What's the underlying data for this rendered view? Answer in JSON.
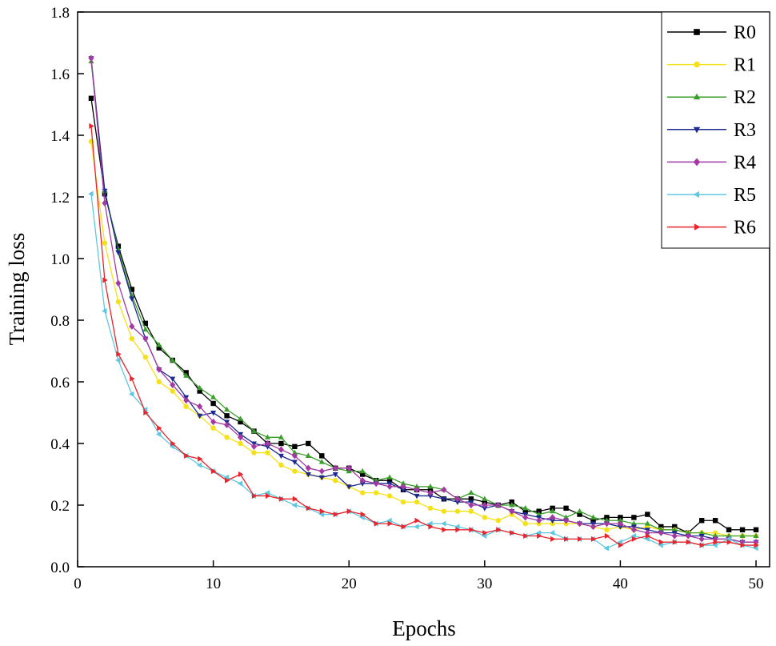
{
  "chart_data": {
    "type": "line",
    "title": "",
    "xlabel": "Epochs",
    "ylabel": "Training loss",
    "xlim": [
      0,
      51
    ],
    "ylim": [
      0.0,
      1.8
    ],
    "xticks": [
      0,
      10,
      20,
      30,
      40,
      50
    ],
    "xtick_labels": [
      "0",
      "10",
      "20",
      "30",
      "40",
      "50"
    ],
    "yticks": [
      0.0,
      0.2,
      0.4,
      0.6,
      0.8,
      1.0,
      1.2,
      1.4,
      1.6,
      1.8
    ],
    "ytick_labels": [
      "0.0",
      "0.2",
      "0.4",
      "0.6",
      "0.8",
      "1.0",
      "1.2",
      "1.4",
      "1.6",
      "1.8"
    ],
    "grid": false,
    "legend_position": "top-right",
    "x": [
      1,
      2,
      3,
      4,
      5,
      6,
      7,
      8,
      9,
      10,
      11,
      12,
      13,
      14,
      15,
      16,
      17,
      18,
      19,
      20,
      21,
      22,
      23,
      24,
      25,
      26,
      27,
      28,
      29,
      30,
      31,
      32,
      33,
      34,
      35,
      36,
      37,
      38,
      39,
      40,
      41,
      42,
      43,
      44,
      45,
      46,
      47,
      48,
      49,
      50
    ],
    "series": [
      {
        "name": "R0",
        "color": "#000000",
        "marker": "square",
        "values": [
          1.52,
          1.21,
          1.04,
          0.9,
          0.79,
          0.71,
          0.67,
          0.63,
          0.57,
          0.53,
          0.49,
          0.47,
          0.44,
          0.4,
          0.4,
          0.39,
          0.4,
          0.36,
          0.32,
          0.32,
          0.3,
          0.28,
          0.28,
          0.25,
          0.25,
          0.25,
          0.22,
          0.22,
          0.22,
          0.21,
          0.2,
          0.21,
          0.18,
          0.18,
          0.19,
          0.19,
          0.17,
          0.15,
          0.16,
          0.16,
          0.16,
          0.17,
          0.13,
          0.13,
          0.11,
          0.15,
          0.15,
          0.12,
          0.12,
          0.12
        ]
      },
      {
        "name": "R1",
        "color": "#f5e11a",
        "marker": "circle",
        "values": [
          1.38,
          1.05,
          0.86,
          0.74,
          0.68,
          0.6,
          0.57,
          0.52,
          0.49,
          0.45,
          0.42,
          0.4,
          0.37,
          0.37,
          0.33,
          0.31,
          0.3,
          0.29,
          0.28,
          0.26,
          0.24,
          0.24,
          0.23,
          0.21,
          0.21,
          0.19,
          0.18,
          0.18,
          0.18,
          0.16,
          0.15,
          0.17,
          0.14,
          0.14,
          0.14,
          0.14,
          0.14,
          0.13,
          0.12,
          0.13,
          0.12,
          0.13,
          0.12,
          0.12,
          0.11,
          0.11,
          0.11,
          0.1,
          0.1,
          0.1
        ]
      },
      {
        "name": "R2",
        "color": "#3a9e2a",
        "marker": "triangle-up",
        "values": [
          1.64,
          1.22,
          1.03,
          0.88,
          0.77,
          0.72,
          0.67,
          0.62,
          0.58,
          0.55,
          0.51,
          0.48,
          0.44,
          0.42,
          0.42,
          0.37,
          0.36,
          0.34,
          0.32,
          0.31,
          0.31,
          0.28,
          0.29,
          0.27,
          0.26,
          0.26,
          0.25,
          0.22,
          0.24,
          0.22,
          0.2,
          0.2,
          0.19,
          0.17,
          0.18,
          0.16,
          0.18,
          0.16,
          0.15,
          0.15,
          0.14,
          0.14,
          0.12,
          0.12,
          0.11,
          0.11,
          0.1,
          0.1,
          0.1,
          0.1
        ]
      },
      {
        "name": "R3",
        "color": "#1c2a8f",
        "marker": "triangle-down",
        "values": [
          1.65,
          1.22,
          1.02,
          0.87,
          0.74,
          0.64,
          0.61,
          0.55,
          0.49,
          0.5,
          0.47,
          0.43,
          0.4,
          0.39,
          0.36,
          0.34,
          0.3,
          0.29,
          0.3,
          0.26,
          0.27,
          0.27,
          0.27,
          0.25,
          0.23,
          0.23,
          0.22,
          0.21,
          0.21,
          0.19,
          0.2,
          0.18,
          0.17,
          0.16,
          0.15,
          0.15,
          0.14,
          0.14,
          0.14,
          0.13,
          0.13,
          0.12,
          0.11,
          0.11,
          0.1,
          0.1,
          0.09,
          0.09,
          0.08,
          0.08
        ]
      },
      {
        "name": "R4",
        "color": "#a33aa3",
        "marker": "diamond",
        "values": [
          1.65,
          1.18,
          0.92,
          0.78,
          0.74,
          0.64,
          0.59,
          0.54,
          0.52,
          0.47,
          0.46,
          0.42,
          0.39,
          0.4,
          0.38,
          0.36,
          0.32,
          0.31,
          0.32,
          0.32,
          0.28,
          0.27,
          0.26,
          0.26,
          0.25,
          0.24,
          0.25,
          0.22,
          0.2,
          0.2,
          0.2,
          0.18,
          0.16,
          0.15,
          0.16,
          0.15,
          0.14,
          0.13,
          0.14,
          0.14,
          0.12,
          0.11,
          0.11,
          0.1,
          0.1,
          0.09,
          0.09,
          0.09,
          0.08,
          0.08
        ]
      },
      {
        "name": "R5",
        "color": "#5ec8e0",
        "marker": "triangle-left",
        "values": [
          1.21,
          0.83,
          0.67,
          0.56,
          0.51,
          0.43,
          0.39,
          0.36,
          0.33,
          0.31,
          0.29,
          0.27,
          0.23,
          0.24,
          0.22,
          0.2,
          0.19,
          0.17,
          0.17,
          0.18,
          0.16,
          0.14,
          0.15,
          0.13,
          0.13,
          0.14,
          0.14,
          0.13,
          0.12,
          0.1,
          0.12,
          0.11,
          0.1,
          0.11,
          0.11,
          0.09,
          0.09,
          0.09,
          0.06,
          0.08,
          0.1,
          0.09,
          0.07,
          0.08,
          0.08,
          0.07,
          0.07,
          0.09,
          0.07,
          0.06
        ]
      },
      {
        "name": "R6",
        "color": "#e8242c",
        "marker": "triangle-right",
        "values": [
          1.43,
          0.93,
          0.69,
          0.61,
          0.5,
          0.45,
          0.4,
          0.36,
          0.35,
          0.31,
          0.28,
          0.3,
          0.23,
          0.23,
          0.22,
          0.22,
          0.19,
          0.18,
          0.17,
          0.18,
          0.17,
          0.14,
          0.14,
          0.13,
          0.15,
          0.13,
          0.12,
          0.12,
          0.12,
          0.11,
          0.12,
          0.11,
          0.1,
          0.1,
          0.09,
          0.09,
          0.09,
          0.09,
          0.1,
          0.07,
          0.09,
          0.1,
          0.08,
          0.08,
          0.08,
          0.07,
          0.08,
          0.08,
          0.07,
          0.07
        ]
      }
    ]
  }
}
